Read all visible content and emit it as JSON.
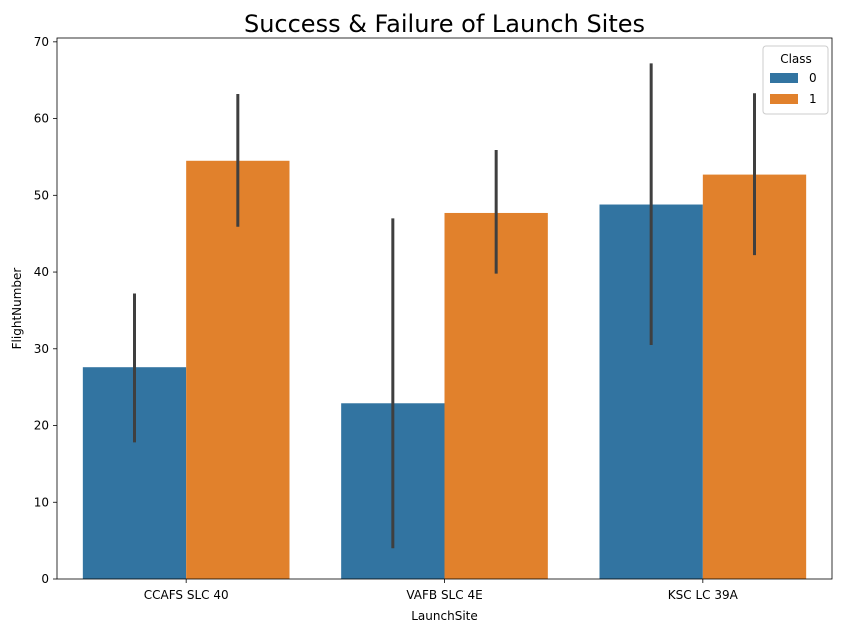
{
  "chart_data": {
    "type": "bar",
    "title": "Success & Failure of Launch Sites",
    "xlabel": "LaunchSite",
    "ylabel": "FlightNumber",
    "categories": [
      "CCAFS SLC 40",
      "VAFB SLC 4E",
      "KSC LC 39A"
    ],
    "ylim": [
      0,
      70.5
    ],
    "yticks": [
      0,
      10,
      20,
      30,
      40,
      50,
      60,
      70
    ],
    "legend": {
      "title": "Class",
      "placement": "top-right"
    },
    "grid": false,
    "series": [
      {
        "name": "0",
        "color": "#3274a1",
        "values": [
          27.6,
          22.9,
          48.8
        ],
        "error_low": [
          17.8,
          4.0,
          30.5
        ],
        "error_high": [
          37.2,
          47.0,
          67.2
        ]
      },
      {
        "name": "1",
        "color": "#e1812c",
        "values": [
          54.5,
          47.7,
          52.7
        ],
        "error_low": [
          45.9,
          39.8,
          42.2
        ],
        "error_high": [
          63.2,
          55.9,
          63.3
        ]
      }
    ]
  }
}
